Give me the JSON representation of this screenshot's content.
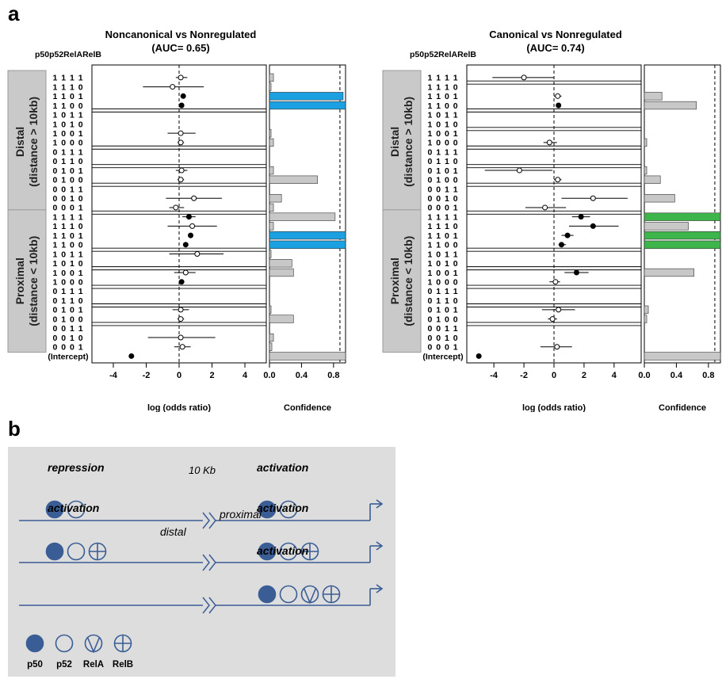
{
  "panel_labels": {
    "a": "a",
    "b": "b"
  },
  "chart_data": [
    {
      "type": "scatter",
      "title": "Noncanonical vs Nonregulated",
      "subtitle": "(AUC= 0.65)",
      "xlabel": "log (odds ratio)",
      "xlim": [
        -5.3,
        5.3
      ],
      "xticks": [
        -4,
        -2,
        0,
        2,
        4
      ],
      "header": "p50p52RelARelB",
      "rows": [
        "1111",
        "1110",
        "1101",
        "1100",
        "1011",
        "1010",
        "1001",
        "1000",
        "0111",
        "0110",
        "0101",
        "0100",
        "0011",
        "0010",
        "0001",
        "1111",
        "1110",
        "1101",
        "1100",
        "1011",
        "1010",
        "1001",
        "1000",
        "0111",
        "0110",
        "0101",
        "0100",
        "0011",
        "0010",
        "0001",
        "(Intercept)"
      ],
      "groups": [
        {
          "label": "Distal\n(distance > 10kb)",
          "start": 0,
          "end": 14
        },
        {
          "label": "Proximal\n(distance < 10kb)",
          "start": 15,
          "end": 29
        }
      ],
      "separators_after": [
        3,
        7,
        9,
        11,
        14,
        18,
        20,
        22,
        24,
        26
      ],
      "points": [
        {
          "row": 0,
          "est": 0.1,
          "lo": -0.2,
          "hi": 0.5,
          "filled": false
        },
        {
          "row": 1,
          "est": -0.4,
          "lo": -2.2,
          "hi": 1.5,
          "filled": false
        },
        {
          "row": 2,
          "est": 0.25,
          "lo": 0.25,
          "hi": 0.25,
          "filled": true
        },
        {
          "row": 3,
          "est": 0.15,
          "lo": 0.15,
          "hi": 0.15,
          "filled": true
        },
        {
          "row": 6,
          "est": 0.1,
          "lo": -0.7,
          "hi": 1.0,
          "filled": false
        },
        {
          "row": 7,
          "est": 0.1,
          "lo": -0.1,
          "hi": 0.3,
          "filled": false
        },
        {
          "row": 10,
          "est": 0.15,
          "lo": -0.2,
          "hi": 0.5,
          "filled": false
        },
        {
          "row": 11,
          "est": 0.1,
          "lo": -0.1,
          "hi": 0.3,
          "filled": false
        },
        {
          "row": 13,
          "est": 0.9,
          "lo": -0.8,
          "hi": 2.6,
          "filled": false
        },
        {
          "row": 14,
          "est": -0.2,
          "lo": -0.6,
          "hi": 0.3,
          "filled": false
        },
        {
          "row": 15,
          "est": 0.6,
          "lo": 0.2,
          "hi": 1.0,
          "filled": true
        },
        {
          "row": 16,
          "est": 0.8,
          "lo": -0.7,
          "hi": 2.3,
          "filled": false
        },
        {
          "row": 17,
          "est": 0.7,
          "lo": 0.7,
          "hi": 0.7,
          "filled": true
        },
        {
          "row": 18,
          "est": 0.4,
          "lo": 0.4,
          "hi": 0.4,
          "filled": true
        },
        {
          "row": 19,
          "est": 1.1,
          "lo": -0.6,
          "hi": 2.7,
          "filled": false
        },
        {
          "row": 21,
          "est": 0.4,
          "lo": -0.3,
          "hi": 1.0,
          "filled": false
        },
        {
          "row": 22,
          "est": 0.15,
          "lo": 0.15,
          "hi": 0.15,
          "filled": true
        },
        {
          "row": 25,
          "est": 0.1,
          "lo": -0.4,
          "hi": 0.6,
          "filled": false
        },
        {
          "row": 26,
          "est": 0.1,
          "lo": -0.1,
          "hi": 0.3,
          "filled": false
        },
        {
          "row": 28,
          "est": 0.1,
          "lo": -1.9,
          "hi": 2.2,
          "filled": false
        },
        {
          "row": 29,
          "est": 0.2,
          "lo": -0.3,
          "hi": 0.7,
          "filled": false
        },
        {
          "row": 30,
          "est": -2.9,
          "lo": -2.9,
          "hi": 2.9,
          "filled": true,
          "nobar": true
        }
      ],
      "confidence": {
        "label": "Confidence",
        "xlim": [
          0,
          0.95
        ],
        "xticks": [
          "0.0",
          "0.4",
          "0.8"
        ],
        "xtick_values": [
          0,
          0.4,
          0.8
        ],
        "threshold": 0.88,
        "values": [
          0.05,
          0.02,
          0.92,
          0.95,
          0,
          0,
          0.02,
          0.05,
          0,
          0,
          0.05,
          0.6,
          0,
          0.15,
          0.05,
          0.82,
          0.05,
          0.95,
          0.95,
          0.02,
          0.28,
          0.3,
          0,
          0,
          0,
          0.02,
          0.3,
          0,
          0.05,
          0.03,
          0.95
        ],
        "highlight": [
          2,
          3,
          17,
          18
        ],
        "highlight_color": "#1ba1e2",
        "base_color": "#c8c8c8"
      }
    },
    {
      "type": "scatter",
      "title": "Canonical vs Nonregulated",
      "subtitle": "(AUC= 0.74)",
      "xlabel": "log (odds ratio)",
      "xlim": [
        -5.8,
        5.8
      ],
      "xticks": [
        -4,
        -2,
        0,
        2,
        4
      ],
      "header": "p50p52RelARelB",
      "rows": [
        "1111",
        "1110",
        "1101",
        "1100",
        "1011",
        "1010",
        "1001",
        "1000",
        "0111",
        "0110",
        "0101",
        "0100",
        "0011",
        "0010",
        "0001",
        "1111",
        "1110",
        "1101",
        "1100",
        "1011",
        "1010",
        "1001",
        "1000",
        "0111",
        "0110",
        "0101",
        "0100",
        "0011",
        "0010",
        "0001",
        "(Intercept)"
      ],
      "groups": [
        {
          "label": "Distal\n(distance > 10kb)",
          "start": 0,
          "end": 14
        },
        {
          "label": "Proximal\n(distance < 10kb)",
          "start": 15,
          "end": 29
        }
      ],
      "separators_after": [
        0,
        3,
        5,
        7,
        9,
        11,
        14,
        18,
        20,
        22,
        24,
        26
      ],
      "points": [
        {
          "row": 0,
          "est": -2.0,
          "lo": -4.1,
          "hi": 0.0,
          "filled": false
        },
        {
          "row": 2,
          "est": 0.25,
          "lo": 0.0,
          "hi": 0.5,
          "filled": false
        },
        {
          "row": 3,
          "est": 0.3,
          "lo": 0.3,
          "hi": 0.3,
          "filled": true
        },
        {
          "row": 7,
          "est": -0.3,
          "lo": -0.7,
          "hi": 0.2,
          "filled": false
        },
        {
          "row": 10,
          "est": -2.3,
          "lo": -4.6,
          "hi": -0.1,
          "filled": false
        },
        {
          "row": 11,
          "est": 0.25,
          "lo": 0.0,
          "hi": 0.5,
          "filled": false
        },
        {
          "row": 13,
          "est": 2.6,
          "lo": 0.5,
          "hi": 4.9,
          "filled": false
        },
        {
          "row": 14,
          "est": -0.6,
          "lo": -1.9,
          "hi": 0.8,
          "filled": false
        },
        {
          "row": 15,
          "est": 1.8,
          "lo": 1.2,
          "hi": 2.4,
          "filled": true
        },
        {
          "row": 16,
          "est": 2.6,
          "lo": 1.0,
          "hi": 4.3,
          "filled": true
        },
        {
          "row": 17,
          "est": 0.9,
          "lo": 0.5,
          "hi": 1.3,
          "filled": true
        },
        {
          "row": 18,
          "est": 0.5,
          "lo": 0.3,
          "hi": 0.8,
          "filled": true
        },
        {
          "row": 21,
          "est": 1.5,
          "lo": 0.7,
          "hi": 2.3,
          "filled": true
        },
        {
          "row": 22,
          "est": 0.1,
          "lo": -0.3,
          "hi": 0.4,
          "filled": false
        },
        {
          "row": 25,
          "est": 0.3,
          "lo": -0.8,
          "hi": 1.4,
          "filled": false
        },
        {
          "row": 26,
          "est": -0.1,
          "lo": -0.4,
          "hi": 0.2,
          "filled": false
        },
        {
          "row": 29,
          "est": 0.2,
          "lo": -0.9,
          "hi": 1.2,
          "filled": false
        },
        {
          "row": 30,
          "est": -5.0,
          "lo": -5.0,
          "hi": -5.0,
          "filled": true,
          "nobar": true
        }
      ],
      "confidence": {
        "label": "Confidence",
        "xlim": [
          0,
          0.95
        ],
        "xticks": [
          "0.0",
          "0.4",
          "0.8"
        ],
        "xtick_values": [
          0,
          0.4,
          0.8
        ],
        "threshold": 0.88,
        "values": [
          0,
          0,
          0.22,
          0.65,
          0,
          0,
          0,
          0.03,
          0,
          0,
          0.03,
          0.2,
          0,
          0.38,
          0,
          0.95,
          0.55,
          0.95,
          0.95,
          0,
          0,
          0.62,
          0,
          0,
          0,
          0.05,
          0.03,
          0,
          0,
          0,
          0.95
        ],
        "highlight": [
          15,
          17,
          18
        ],
        "highlight_color": "#3db54a",
        "base_color": "#c8c8c8"
      }
    }
  ],
  "diagram": {
    "distance_label": "10 Kb",
    "distal_label": "distal",
    "proximal_label": "proximal",
    "rows": [
      {
        "left_label": "repression",
        "left_symbols": [
          "p50",
          "p52"
        ],
        "right_label": "activation",
        "right_symbols": [
          "p50",
          "p52"
        ]
      },
      {
        "left_label": "activation",
        "left_symbols": [
          "p50",
          "p52",
          "RelB"
        ],
        "right_label": "activation",
        "right_symbols": [
          "p50",
          "p52",
          "RelB"
        ]
      },
      {
        "left_label": "",
        "left_symbols": [],
        "right_label": "activation",
        "right_symbols": [
          "p50",
          "p52",
          "RelA",
          "RelB"
        ]
      }
    ],
    "legend": [
      {
        "symbol": "p50",
        "label": "p50"
      },
      {
        "symbol": "p52",
        "label": "p52"
      },
      {
        "symbol": "RelA",
        "label": "RelA"
      },
      {
        "symbol": "RelB",
        "label": "RelB"
      }
    ],
    "colors": {
      "background": "#dddddd",
      "line": "#3a5d95",
      "fill": "#3a5d95"
    }
  }
}
